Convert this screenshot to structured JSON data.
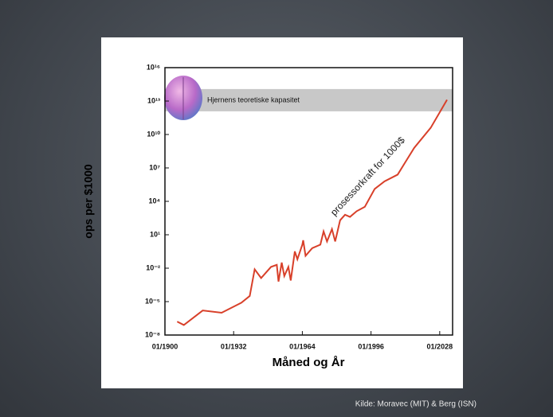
{
  "chart_data": {
    "type": "line",
    "log_y": true,
    "y_label": "ops per $1000",
    "x_label": "Måned og År",
    "band": {
      "label": "Hjernens teoretiske kapasitet",
      "range": [
        1200000000000.0,
        120000000000000.0
      ],
      "color": "#c8c8c8"
    },
    "annotation": "prosessorkraft for 1000$",
    "source": "Kilde:  Moravec (MIT) & Berg (ISN)",
    "xlim": [
      1900,
      2034
    ],
    "xticks": [
      {
        "value": 1900,
        "label": "01/1900"
      },
      {
        "value": 1932,
        "label": "01/1932"
      },
      {
        "value": 1964,
        "label": "01/1964"
      },
      {
        "value": 1996,
        "label": "01/1996"
      },
      {
        "value": 2028,
        "label": "01/2028"
      }
    ],
    "ylim": [
      1e-08,
      1e+16
    ],
    "yticks": [
      {
        "value": 1e-08,
        "label": "10⁻⁸"
      },
      {
        "value": 1e-05,
        "label": "10⁻⁵"
      },
      {
        "value": 0.01,
        "label": "10⁻²"
      },
      {
        "value": 10,
        "label": "10¹"
      },
      {
        "value": 10000,
        "label": "10⁴"
      },
      {
        "value": 10000000.0,
        "label": "10⁷"
      },
      {
        "value": 10000000000.0,
        "label": "10¹⁰"
      },
      {
        "value": 10000000000000.0,
        "label": "10¹³"
      },
      {
        "value": 1e+16,
        "label": "10¹⁶"
      }
    ],
    "series": [
      {
        "color": "#d8402a",
        "x": [
          1905.7,
          1908.8,
          1917.6,
          1926.4,
          1935.6,
          1939.5,
          1941.8,
          1944.8,
          1949.4,
          1952.1,
          1952.9,
          1954.4,
          1955.6,
          1957.5,
          1958.6,
          1960.5,
          1961.7,
          1964.0,
          1964.4,
          1965.5,
          1968.6,
          1972.4,
          1973.9,
          1975.5,
          1977.8,
          1979.3,
          1981.6,
          1983.9,
          1986.2,
          1989.3,
          1993.1,
          1997.7,
          2002.3,
          2008.4,
          2016.1,
          2023.8,
          2031.4
        ],
        "values": [
          1.6e-07,
          7.9e-08,
          1.6e-06,
          1e-06,
          7.9e-06,
          3.2e-05,
          0.0079,
          0.0013,
          0.013,
          0.02,
          0.00063,
          0.032,
          0.002,
          0.013,
          0.00079,
          0.32,
          0.063,
          1.3,
          3.2,
          0.13,
          0.63,
          1.3,
          20,
          2.5,
          32,
          2.5,
          200,
          630,
          400,
          1300,
          3200,
          130000,
          630000,
          2500000,
          630000000,
          40000000000.0,
          13000000000000.0
        ]
      }
    ]
  }
}
